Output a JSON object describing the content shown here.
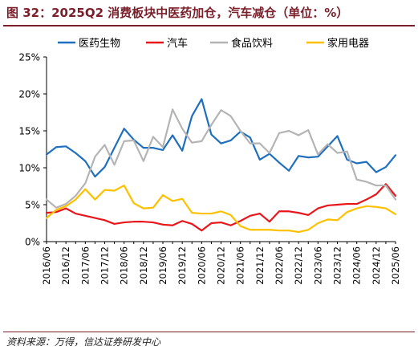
{
  "header": {
    "title": "图 32：2025Q2 消费板块中医药加仓，汽车减仓（单位：%）"
  },
  "footer": {
    "source": "资料来源：万得，信达证券研发中心"
  },
  "chart_data": {
    "type": "line",
    "title": "图 32：2025Q2 消费板块中医药加仓，汽车减仓（单位：%）",
    "xlabel": "",
    "ylabel": "",
    "ylim": [
      0,
      25
    ],
    "yticks": [
      "0%",
      "5%",
      "10%",
      "15%",
      "20%",
      "25%"
    ],
    "xtick_labels": [
      "2016/06",
      "2016/12",
      "2017/06",
      "2017/12",
      "2018/06",
      "2018/12",
      "2019/06",
      "2019/12",
      "2020/06",
      "2020/12",
      "2021/06",
      "2021/12",
      "2022/06",
      "2022/12",
      "2023/06",
      "2023/12",
      "2024/06",
      "2024/12",
      "2025/06"
    ],
    "legend_position": "top",
    "grid": false,
    "x": [
      "2016/06",
      "2016/09",
      "2016/12",
      "2017/03",
      "2017/06",
      "2017/09",
      "2017/12",
      "2018/03",
      "2018/06",
      "2018/09",
      "2018/12",
      "2019/03",
      "2019/06",
      "2019/09",
      "2019/12",
      "2020/03",
      "2020/06",
      "2020/09",
      "2020/12",
      "2021/03",
      "2021/06",
      "2021/09",
      "2021/12",
      "2022/03",
      "2022/06",
      "2022/09",
      "2022/12",
      "2023/03",
      "2023/06",
      "2023/09",
      "2023/12",
      "2024/03",
      "2024/06",
      "2024/09",
      "2024/12",
      "2025/03",
      "2025/06"
    ],
    "series": [
      {
        "name": "医药生物",
        "color": "#1f6fbf",
        "values": [
          11.8,
          12.8,
          12.9,
          12.0,
          10.9,
          8.8,
          10.1,
          12.7,
          15.3,
          13.8,
          12.7,
          12.7,
          12.4,
          14.4,
          12.3,
          17.0,
          19.3,
          14.5,
          13.3,
          13.7,
          14.9,
          14.1,
          11.1,
          11.9,
          10.7,
          9.6,
          11.6,
          11.4,
          11.5,
          12.9,
          14.3,
          11.1,
          10.6,
          10.8,
          9.4,
          10.1,
          11.7
        ]
      },
      {
        "name": "汽车",
        "color": "#e8161b",
        "values": [
          3.9,
          4.0,
          4.5,
          3.8,
          3.5,
          3.2,
          2.9,
          2.4,
          2.6,
          2.7,
          2.7,
          2.6,
          2.3,
          2.2,
          2.8,
          2.4,
          1.5,
          2.5,
          2.6,
          2.2,
          2.8,
          3.5,
          3.8,
          2.7,
          4.1,
          4.1,
          3.9,
          3.6,
          4.5,
          4.9,
          5.0,
          5.1,
          5.1,
          5.7,
          6.4,
          7.8,
          6.2
        ]
      },
      {
        "name": "食品饮料",
        "color": "#b4b4b4",
        "values": [
          5.7,
          4.6,
          5.1,
          6.2,
          7.9,
          11.5,
          13.1,
          10.4,
          13.6,
          13.7,
          10.9,
          14.2,
          12.8,
          17.9,
          15.3,
          13.4,
          13.6,
          15.8,
          17.8,
          17.0,
          15.0,
          13.3,
          13.3,
          12.0,
          14.7,
          15.0,
          14.4,
          15.1,
          11.8,
          13.2,
          12.0,
          12.2,
          8.4,
          8.1,
          7.6,
          7.6,
          5.7
        ]
      },
      {
        "name": "家用电器",
        "color": "#ffc000",
        "values": [
          3.2,
          4.3,
          4.8,
          5.7,
          7.1,
          5.7,
          7.0,
          6.9,
          7.6,
          5.2,
          4.5,
          4.6,
          6.3,
          5.5,
          5.8,
          3.9,
          3.8,
          3.8,
          4.1,
          3.6,
          2.1,
          1.6,
          1.6,
          1.6,
          1.5,
          1.5,
          1.3,
          1.6,
          2.5,
          3.0,
          2.9,
          4.0,
          4.5,
          4.8,
          4.7,
          4.5,
          3.7
        ]
      }
    ]
  }
}
